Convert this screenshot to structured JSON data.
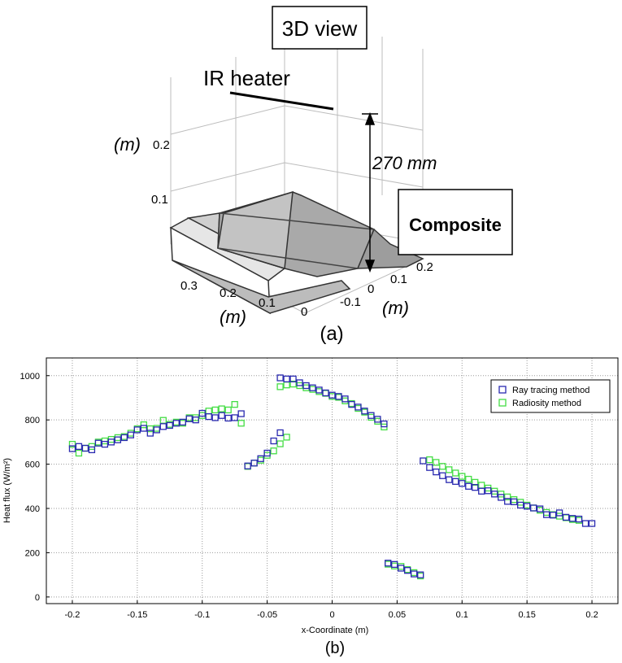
{
  "figure_a": {
    "title": "3D view",
    "heater_label": "IR heater",
    "distance_label": "270 mm",
    "composite_label": "Composite",
    "z_axis_unit": "(m)",
    "z_ticks": [
      "0.2",
      "0.1"
    ],
    "left_axis_ticks": [
      "0.3",
      "0.2",
      "0.1",
      "0"
    ],
    "left_axis_unit": "(m)",
    "right_axis_ticks": [
      "0.2",
      "0.1",
      "0",
      "-0.1"
    ],
    "right_axis_unit": "(m)",
    "caption": "(a)"
  },
  "chart_data": {
    "type": "scatter",
    "xlabel": "x-Coordinate (m)",
    "ylabel": "Heat flux (W/m²)",
    "xlim": [
      -0.22,
      0.22
    ],
    "ylim": [
      -30,
      1080
    ],
    "xticks": [
      "-0.2",
      "-0.15",
      "-0.1",
      "-0.05",
      "0",
      "0.05",
      "0.1",
      "0.15",
      "0.2"
    ],
    "yticks": [
      "0",
      "200",
      "400",
      "600",
      "800",
      "1000"
    ],
    "grid": true,
    "legend_position": "top-right",
    "caption": "(b)",
    "series": [
      {
        "name": "Ray tracing method",
        "color": "#2a2ab0",
        "marker": "open-square",
        "points": [
          [
            -0.2,
            670
          ],
          [
            -0.195,
            680
          ],
          [
            -0.19,
            672
          ],
          [
            -0.185,
            665
          ],
          [
            -0.18,
            695
          ],
          [
            -0.175,
            690
          ],
          [
            -0.17,
            700
          ],
          [
            -0.165,
            710
          ],
          [
            -0.16,
            720
          ],
          [
            -0.155,
            732
          ],
          [
            -0.15,
            755
          ],
          [
            -0.145,
            762
          ],
          [
            -0.14,
            740
          ],
          [
            -0.135,
            755
          ],
          [
            -0.13,
            770
          ],
          [
            -0.125,
            775
          ],
          [
            -0.12,
            785
          ],
          [
            -0.115,
            790
          ],
          [
            -0.11,
            805
          ],
          [
            -0.105,
            800
          ],
          [
            -0.1,
            830
          ],
          [
            -0.095,
            815
          ],
          [
            -0.09,
            810
          ],
          [
            -0.085,
            820
          ],
          [
            -0.08,
            808
          ],
          [
            -0.075,
            810
          ],
          [
            -0.07,
            828
          ],
          [
            -0.065,
            592
          ],
          [
            -0.06,
            605
          ],
          [
            -0.055,
            625
          ],
          [
            -0.05,
            650
          ],
          [
            -0.045,
            705
          ],
          [
            -0.04,
            742
          ],
          [
            -0.04,
            990
          ],
          [
            -0.035,
            985
          ],
          [
            -0.03,
            985
          ],
          [
            -0.025,
            968
          ],
          [
            -0.02,
            955
          ],
          [
            -0.015,
            945
          ],
          [
            -0.01,
            935
          ],
          [
            -0.005,
            922
          ],
          [
            0.0,
            912
          ],
          [
            0.005,
            906
          ],
          [
            0.01,
            895
          ],
          [
            0.015,
            870
          ],
          [
            0.02,
            858
          ],
          [
            0.025,
            840
          ],
          [
            0.03,
            820
          ],
          [
            0.035,
            803
          ],
          [
            0.04,
            782
          ],
          [
            0.043,
            153
          ],
          [
            0.048,
            147
          ],
          [
            0.053,
            130
          ],
          [
            0.058,
            120
          ],
          [
            0.063,
            104
          ],
          [
            0.068,
            100
          ],
          [
            0.07,
            615
          ],
          [
            0.075,
            585
          ],
          [
            0.08,
            565
          ],
          [
            0.085,
            548
          ],
          [
            0.09,
            530
          ],
          [
            0.095,
            522
          ],
          [
            0.1,
            513
          ],
          [
            0.105,
            500
          ],
          [
            0.11,
            495
          ],
          [
            0.115,
            478
          ],
          [
            0.12,
            480
          ],
          [
            0.125,
            465
          ],
          [
            0.13,
            450
          ],
          [
            0.135,
            432
          ],
          [
            0.14,
            430
          ],
          [
            0.145,
            415
          ],
          [
            0.15,
            410
          ],
          [
            0.155,
            402
          ],
          [
            0.16,
            398
          ],
          [
            0.165,
            372
          ],
          [
            0.17,
            370
          ],
          [
            0.175,
            380
          ],
          [
            0.18,
            360
          ],
          [
            0.185,
            355
          ],
          [
            0.19,
            352
          ],
          [
            0.195,
            332
          ],
          [
            0.2,
            332
          ]
        ]
      },
      {
        "name": "Radiosity method",
        "color": "#44dd44",
        "marker": "open-square",
        "points": [
          [
            -0.2,
            690
          ],
          [
            -0.195,
            650
          ],
          [
            -0.19,
            672
          ],
          [
            -0.185,
            680
          ],
          [
            -0.18,
            700
          ],
          [
            -0.175,
            705
          ],
          [
            -0.17,
            712
          ],
          [
            -0.165,
            720
          ],
          [
            -0.16,
            725
          ],
          [
            -0.155,
            740
          ],
          [
            -0.15,
            760
          ],
          [
            -0.145,
            778
          ],
          [
            -0.14,
            760
          ],
          [
            -0.135,
            762
          ],
          [
            -0.13,
            798
          ],
          [
            -0.125,
            780
          ],
          [
            -0.12,
            790
          ],
          [
            -0.115,
            785
          ],
          [
            -0.11,
            810
          ],
          [
            -0.105,
            810
          ],
          [
            -0.1,
            820
          ],
          [
            -0.095,
            840
          ],
          [
            -0.09,
            845
          ],
          [
            -0.085,
            850
          ],
          [
            -0.08,
            845
          ],
          [
            -0.075,
            870
          ],
          [
            -0.07,
            785
          ],
          [
            -0.065,
            590
          ],
          [
            -0.06,
            605
          ],
          [
            -0.055,
            618
          ],
          [
            -0.05,
            640
          ],
          [
            -0.045,
            660
          ],
          [
            -0.04,
            692
          ],
          [
            -0.035,
            722
          ],
          [
            -0.04,
            950
          ],
          [
            -0.035,
            958
          ],
          [
            -0.03,
            962
          ],
          [
            -0.025,
            955
          ],
          [
            -0.02,
            945
          ],
          [
            -0.015,
            938
          ],
          [
            -0.01,
            928
          ],
          [
            -0.005,
            920
          ],
          [
            0.0,
            906
          ],
          [
            0.005,
            902
          ],
          [
            0.01,
            886
          ],
          [
            0.015,
            874
          ],
          [
            0.02,
            852
          ],
          [
            0.025,
            835
          ],
          [
            0.03,
            812
          ],
          [
            0.035,
            794
          ],
          [
            0.04,
            768
          ],
          [
            0.043,
            148
          ],
          [
            0.048,
            140
          ],
          [
            0.053,
            138
          ],
          [
            0.058,
            124
          ],
          [
            0.063,
            110
          ],
          [
            0.068,
            95
          ],
          [
            0.075,
            620
          ],
          [
            0.08,
            608
          ],
          [
            0.085,
            590
          ],
          [
            0.09,
            575
          ],
          [
            0.095,
            560
          ],
          [
            0.1,
            545
          ],
          [
            0.105,
            532
          ],
          [
            0.11,
            518
          ],
          [
            0.115,
            505
          ],
          [
            0.12,
            492
          ],
          [
            0.125,
            478
          ],
          [
            0.13,
            465
          ],
          [
            0.135,
            452
          ],
          [
            0.14,
            440
          ],
          [
            0.145,
            428
          ],
          [
            0.15,
            415
          ],
          [
            0.155,
            402
          ],
          [
            0.16,
            392
          ],
          [
            0.165,
            382
          ],
          [
            0.17,
            372
          ],
          [
            0.175,
            365
          ],
          [
            0.18,
            358
          ],
          [
            0.185,
            350
          ],
          [
            0.19,
            346
          ]
        ]
      }
    ]
  }
}
